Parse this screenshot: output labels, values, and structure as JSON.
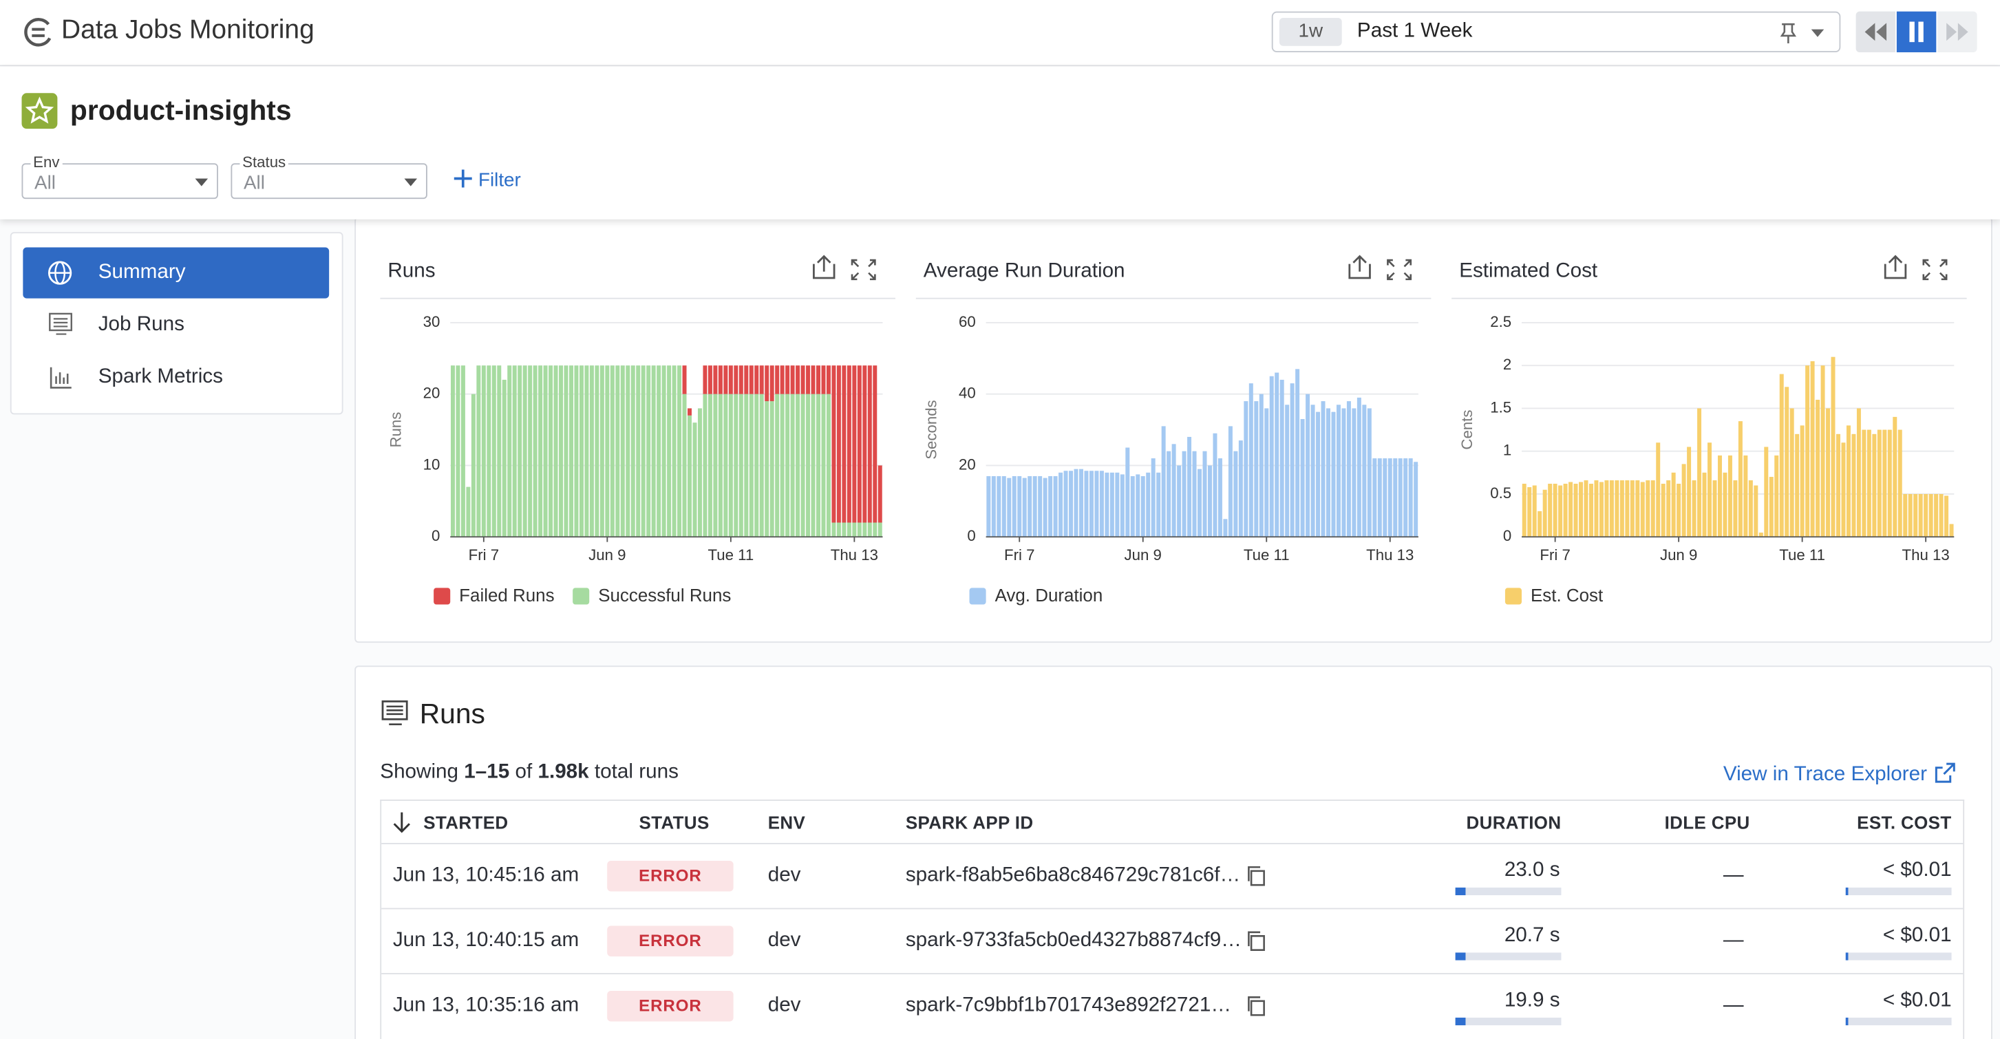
{
  "header": {
    "title": "Data Jobs Monitoring",
    "time_shortcut": "1w",
    "time_range": "Past 1 Week"
  },
  "page": {
    "title": "product-insights",
    "filters": [
      {
        "label": "Env",
        "value": "All"
      },
      {
        "label": "Status",
        "value": "All"
      }
    ],
    "add_filter": "Filter"
  },
  "nav": [
    "Summary",
    "Job Runs",
    "Spark Metrics"
  ],
  "chart_data": [
    {
      "type": "bar",
      "stacked": true,
      "title": "Runs",
      "y_label": "Runs",
      "grid": true,
      "categories": [
        null,
        null,
        null,
        null,
        null,
        null,
        "Fri 7",
        null,
        null,
        null,
        null,
        null,
        null,
        null,
        null,
        null,
        null,
        null,
        null,
        null,
        null,
        null,
        null,
        null,
        null,
        null,
        null,
        null,
        null,
        null,
        "Jun 9",
        null,
        null,
        null,
        null,
        null,
        null,
        null,
        null,
        null,
        null,
        null,
        null,
        null,
        null,
        null,
        null,
        null,
        null,
        null,
        null,
        null,
        null,
        null,
        "Tue 11",
        null,
        null,
        null,
        null,
        null,
        null,
        null,
        null,
        null,
        null,
        null,
        null,
        null,
        null,
        null,
        null,
        null,
        null,
        null,
        null,
        null,
        null,
        null,
        "Thu 13",
        null,
        null,
        null,
        null,
        null
      ],
      "series": [
        {
          "name": "Failed Runs",
          "color": "#de4a4a",
          "values": [
            0,
            0,
            0,
            0,
            0,
            0,
            0,
            0,
            0,
            0,
            0,
            0,
            0,
            0,
            0,
            0,
            0,
            0,
            0,
            0,
            0,
            0,
            0,
            0,
            0,
            0,
            0,
            0,
            0,
            0,
            0,
            0,
            0,
            0,
            0,
            0,
            0,
            0,
            0,
            0,
            0,
            0,
            0,
            0,
            0,
            4,
            1,
            0,
            0,
            4,
            4,
            4,
            4,
            4,
            4,
            4,
            4,
            4,
            4,
            4,
            4,
            5,
            5,
            4,
            4,
            4,
            4,
            4,
            4,
            4,
            4,
            4,
            4,
            4,
            22,
            22,
            22,
            22,
            22,
            22,
            22,
            22,
            22,
            8
          ]
        },
        {
          "name": "Successful Runs",
          "color": "#a6dba0",
          "values": [
            24,
            24,
            24,
            7,
            20,
            24,
            24,
            24,
            24,
            24,
            22,
            24,
            24,
            24,
            24,
            24,
            24,
            24,
            24,
            24,
            24,
            24,
            24,
            24,
            24,
            24,
            24,
            24,
            24,
            24,
            24,
            24,
            24,
            24,
            24,
            24,
            24,
            24,
            24,
            24,
            24,
            24,
            24,
            24,
            24,
            20,
            17,
            16,
            18,
            20,
            20,
            20,
            20,
            20,
            20,
            20,
            20,
            20,
            20,
            20,
            20,
            19,
            19,
            20,
            20,
            20,
            20,
            20,
            20,
            20,
            20,
            20,
            20,
            20,
            2,
            2,
            2,
            2,
            2,
            2,
            2,
            2,
            2,
            2
          ]
        }
      ],
      "ylim": [
        0,
        30
      ],
      "yticks": [
        0,
        10,
        20,
        30
      ]
    },
    {
      "type": "bar",
      "title": "Average Run Duration",
      "y_label": "Seconds",
      "grid": true,
      "categories": [
        null,
        null,
        null,
        null,
        null,
        null,
        "Fri 7",
        null,
        null,
        null,
        null,
        null,
        null,
        null,
        null,
        null,
        null,
        null,
        null,
        null,
        null,
        null,
        null,
        null,
        null,
        null,
        null,
        null,
        null,
        null,
        "Jun 9",
        null,
        null,
        null,
        null,
        null,
        null,
        null,
        null,
        null,
        null,
        null,
        null,
        null,
        null,
        null,
        null,
        null,
        null,
        null,
        null,
        null,
        null,
        null,
        "Tue 11",
        null,
        null,
        null,
        null,
        null,
        null,
        null,
        null,
        null,
        null,
        null,
        null,
        null,
        null,
        null,
        null,
        null,
        null,
        null,
        null,
        null,
        null,
        null,
        "Thu 13",
        null,
        null,
        null,
        null,
        null
      ],
      "series": [
        {
          "name": "Avg. Duration",
          "color": "#a4c9f2",
          "values": [
            17,
            17,
            17,
            17,
            16.5,
            17,
            17,
            16.5,
            17,
            17,
            17,
            16.5,
            17,
            17,
            18,
            18.5,
            18.5,
            19,
            19,
            18.5,
            18.5,
            18.5,
            18.5,
            18,
            18,
            18,
            17.5,
            25,
            17,
            17.5,
            17,
            18,
            22,
            18,
            31,
            24,
            26,
            20,
            24,
            28,
            24,
            19,
            24,
            20,
            29,
            22,
            5,
            31,
            24,
            27,
            38,
            43,
            38,
            40,
            36,
            45,
            46,
            44,
            37,
            43,
            47,
            33,
            40,
            37,
            35,
            38,
            36,
            35,
            37,
            36,
            38,
            36,
            39,
            37,
            36,
            22,
            22,
            22,
            22,
            22,
            22,
            22,
            22,
            21
          ]
        }
      ],
      "ylim": [
        0,
        60
      ],
      "yticks": [
        0,
        20,
        40,
        60
      ]
    },
    {
      "type": "bar",
      "title": "Estimated Cost",
      "y_label": "Cents",
      "grid": true,
      "categories": [
        null,
        null,
        null,
        null,
        null,
        null,
        "Fri 7",
        null,
        null,
        null,
        null,
        null,
        null,
        null,
        null,
        null,
        null,
        null,
        null,
        null,
        null,
        null,
        null,
        null,
        null,
        null,
        null,
        null,
        null,
        null,
        "Jun 9",
        null,
        null,
        null,
        null,
        null,
        null,
        null,
        null,
        null,
        null,
        null,
        null,
        null,
        null,
        null,
        null,
        null,
        null,
        null,
        null,
        null,
        null,
        null,
        "Tue 11",
        null,
        null,
        null,
        null,
        null,
        null,
        null,
        null,
        null,
        null,
        null,
        null,
        null,
        null,
        null,
        null,
        null,
        null,
        null,
        null,
        null,
        null,
        null,
        "Thu 13",
        null,
        null,
        null,
        null,
        null
      ],
      "series": [
        {
          "name": "Est. Cost",
          "color": "#f7cf6b",
          "values": [
            0.62,
            0.58,
            0.6,
            0.3,
            0.55,
            0.62,
            0.62,
            0.6,
            0.62,
            0.64,
            0.62,
            0.64,
            0.66,
            0.62,
            0.66,
            0.64,
            0.66,
            0.66,
            0.66,
            0.66,
            0.66,
            0.66,
            0.66,
            0.64,
            0.66,
            0.66,
            1.1,
            0.62,
            0.66,
            0.75,
            0.62,
            0.85,
            1.05,
            0.66,
            1.5,
            0.75,
            1.1,
            0.66,
            0.95,
            0.75,
            0.95,
            0.66,
            1.35,
            0.95,
            0.66,
            0.6,
            0.05,
            1.05,
            0.7,
            0.95,
            1.9,
            1.75,
            1.5,
            1.2,
            1.3,
            2.0,
            2.05,
            1.6,
            2.0,
            1.5,
            2.1,
            1.2,
            1.1,
            1.3,
            1.2,
            1.5,
            1.25,
            1.25,
            1.2,
            1.25,
            1.25,
            1.25,
            1.4,
            1.25,
            0.5,
            0.5,
            0.5,
            0.5,
            0.5,
            0.5,
            0.5,
            0.5,
            0.48,
            0.15
          ]
        }
      ],
      "ylim": [
        0,
        2.5
      ],
      "yticks": [
        0,
        0.5,
        1,
        1.5,
        2,
        2.5
      ]
    }
  ],
  "runs": {
    "title": "Runs",
    "summary": [
      "Showing ",
      "1–15",
      " of ",
      "1.98k",
      " total runs"
    ],
    "link": "View in Trace Explorer",
    "columns": [
      "STARTED",
      "STATUS",
      "ENV",
      "SPARK APP ID",
      "DURATION",
      "IDLE CPU",
      "EST. COST"
    ],
    "rows": [
      [
        "Jun 13, 10:45:16 am",
        "ERROR",
        "dev",
        "spark-f8ab5e6ba8c846729c781c6f…",
        "23.0 s",
        "—",
        "< $0.01"
      ],
      [
        "Jun 13, 10:40:15 am",
        "ERROR",
        "dev",
        "spark-9733fa5cb0ed4327b8874cf9…",
        "20.7 s",
        "—",
        "< $0.01"
      ],
      [
        "Jun 13, 10:35:16 am",
        "ERROR",
        "dev",
        "spark-7c9bbf1b701743e892f2721…",
        "19.9 s",
        "—",
        "< $0.01"
      ]
    ]
  }
}
